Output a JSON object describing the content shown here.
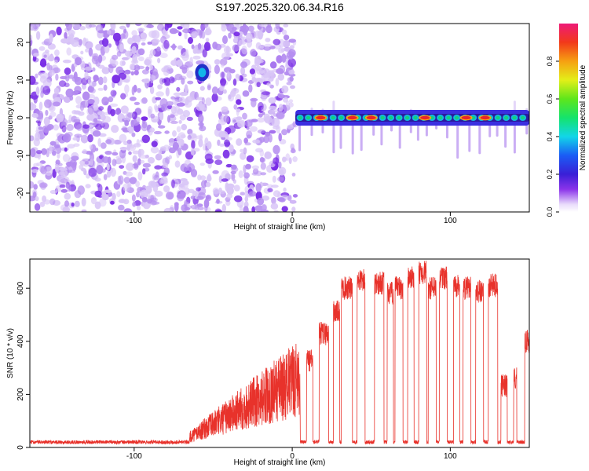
{
  "title": "S197.2025.320.06.34.R16",
  "colors": {
    "line": "#e8322b",
    "blob_light": "#d9c6f7",
    "blob_mid": "#b48cf0",
    "blob_dark": "#7a2ee6",
    "band_dark": "#2a1a9e",
    "band_core": "#13d17a",
    "band_peak": "#e8242a"
  },
  "chart_data": [
    {
      "type": "heatmap",
      "xlabel": "Height of straight line (km)",
      "ylabel": "Frequency (Hz)",
      "xlim": [
        -166,
        150
      ],
      "ylim": [
        -25,
        25
      ],
      "xticks": [
        -100,
        0,
        100
      ],
      "xtick_labels": [
        "-100",
        "0",
        "100"
      ],
      "yticks": [
        -20,
        -10,
        0,
        10,
        20
      ],
      "ytick_labels": [
        "-20",
        "-10",
        "0",
        "10",
        "20"
      ],
      "noise_region_x": [
        -166,
        2
      ],
      "clear_column_x": [
        -52,
        -49
      ],
      "band_region_x": [
        2,
        150
      ],
      "band_frequency_hz": 0,
      "peak_blob": {
        "x": -57,
        "y": 12
      },
      "band_peaks_x": [
        18,
        38,
        50,
        84,
        110,
        122
      ],
      "colorbar": {
        "label": "Normalized spectral amplitude",
        "range": [
          0,
          1
        ],
        "ticks": [
          0,
          0.2,
          0.4,
          0.6,
          0.8
        ],
        "tick_labels": [
          "0.0",
          "0.2",
          "0.4",
          "0.6",
          "0.8"
        ]
      }
    },
    {
      "type": "line",
      "xlabel": "Height of straight line (km)",
      "ylabel": "SNR (10 * v/v)",
      "xlim": [
        -166,
        150
      ],
      "ylim": [
        0,
        710
      ],
      "xticks": [
        -100,
        0,
        100
      ],
      "xtick_labels": [
        "-100",
        "0",
        "100"
      ],
      "yticks": [
        0,
        200,
        400,
        600
      ],
      "ytick_labels": [
        "0",
        "200",
        "400",
        "600"
      ],
      "series": [
        {
          "name": "SNR",
          "noise_floor": 20,
          "ramp": {
            "start_x": -65,
            "end_x": 5,
            "start": 50,
            "end": 330
          },
          "plateaus": [
            {
              "x0": 9,
              "x1": 13,
              "level": 330
            },
            {
              "x0": 17,
              "x1": 23,
              "level": 430
            },
            {
              "x0": 26,
              "x1": 30,
              "level": 510
            },
            {
              "x0": 31,
              "x1": 38,
              "level": 600
            },
            {
              "x0": 41,
              "x1": 46,
              "level": 630
            },
            {
              "x0": 52,
              "x1": 58,
              "level": 620
            },
            {
              "x0": 60,
              "x1": 64,
              "level": 580
            },
            {
              "x0": 65,
              "x1": 70,
              "level": 600
            },
            {
              "x0": 73,
              "x1": 77,
              "level": 640
            },
            {
              "x0": 80,
              "x1": 85,
              "level": 660
            },
            {
              "x0": 86,
              "x1": 91,
              "level": 600
            },
            {
              "x0": 93,
              "x1": 98,
              "level": 640
            },
            {
              "x0": 102,
              "x1": 106,
              "level": 610
            },
            {
              "x0": 108,
              "x1": 113,
              "level": 600
            },
            {
              "x0": 116,
              "x1": 121,
              "level": 590
            },
            {
              "x0": 124,
              "x1": 130,
              "level": 610
            },
            {
              "x0": 132,
              "x1": 136,
              "level": 230
            },
            {
              "x0": 140,
              "x1": 142,
              "level": 260
            },
            {
              "x0": 147,
              "x1": 150,
              "level": 400
            }
          ]
        }
      ]
    }
  ]
}
